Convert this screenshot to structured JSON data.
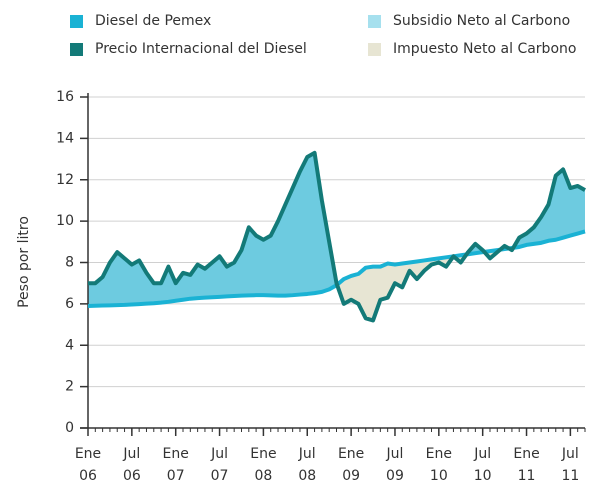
{
  "chart_data": {
    "type": "line",
    "y_label": "Peso por litro",
    "x": [
      "2006-01",
      "2006-02",
      "2006-03",
      "2006-04",
      "2006-05",
      "2006-06",
      "2006-07",
      "2006-08",
      "2006-09",
      "2006-10",
      "2006-11",
      "2006-12",
      "2007-01",
      "2007-02",
      "2007-03",
      "2007-04",
      "2007-05",
      "2007-06",
      "2007-07",
      "2007-08",
      "2007-09",
      "2007-10",
      "2007-11",
      "2007-12",
      "2008-01",
      "2008-02",
      "2008-03",
      "2008-04",
      "2008-05",
      "2008-06",
      "2008-07",
      "2008-08",
      "2008-09",
      "2008-10",
      "2008-11",
      "2008-12",
      "2009-01",
      "2009-02",
      "2009-03",
      "2009-04",
      "2009-05",
      "2009-06",
      "2009-07",
      "2009-08",
      "2009-09",
      "2009-10",
      "2009-11",
      "2009-12",
      "2010-01",
      "2010-02",
      "2010-03",
      "2010-04",
      "2010-05",
      "2010-06",
      "2010-07",
      "2010-08",
      "2010-09",
      "2010-10",
      "2010-11",
      "2010-12",
      "2011-01",
      "2011-02",
      "2011-03",
      "2011-04",
      "2011-05",
      "2011-06",
      "2011-07",
      "2011-08",
      "2011-09"
    ],
    "series": [
      {
        "name": "Diesel de Pemex",
        "color": "#1ab2d4",
        "values": [
          5.9,
          5.91,
          5.92,
          5.93,
          5.94,
          5.95,
          5.97,
          5.99,
          6.01,
          6.03,
          6.06,
          6.1,
          6.15,
          6.2,
          6.25,
          6.28,
          6.3,
          6.32,
          6.34,
          6.36,
          6.38,
          6.4,
          6.41,
          6.42,
          6.42,
          6.41,
          6.4,
          6.4,
          6.42,
          6.45,
          6.48,
          6.52,
          6.58,
          6.7,
          6.9,
          7.2,
          7.35,
          7.45,
          7.75,
          7.8,
          7.8,
          7.95,
          7.9,
          7.95,
          8.0,
          8.05,
          8.1,
          8.15,
          8.2,
          8.25,
          8.3,
          8.35,
          8.4,
          8.45,
          8.5,
          8.55,
          8.6,
          8.65,
          8.7,
          8.75,
          8.85,
          8.9,
          8.95,
          9.05,
          9.1,
          9.2,
          9.3,
          9.4,
          9.5
        ]
      },
      {
        "name": "Precio Internacional del Diesel",
        "color": "#137a78",
        "values": [
          7.0,
          7.0,
          7.3,
          8.0,
          8.5,
          8.2,
          7.9,
          8.1,
          7.5,
          7.0,
          7.0,
          7.8,
          7.0,
          7.5,
          7.4,
          7.9,
          7.7,
          8.0,
          8.3,
          7.8,
          8.0,
          8.6,
          9.7,
          9.3,
          9.1,
          9.3,
          10.0,
          10.8,
          11.6,
          12.4,
          13.1,
          13.3,
          11.0,
          9.0,
          7.0,
          6.0,
          6.2,
          6.0,
          5.3,
          5.2,
          6.2,
          6.3,
          7.0,
          6.8,
          7.6,
          7.2,
          7.6,
          7.9,
          8.0,
          7.8,
          8.3,
          8.0,
          8.5,
          8.9,
          8.6,
          8.2,
          8.5,
          8.8,
          8.6,
          9.2,
          9.4,
          9.7,
          10.2,
          10.8,
          12.2,
          12.5,
          11.6,
          11.7,
          11.5
        ]
      }
    ],
    "areas": [
      {
        "name": "Subsidio Neto al Carbono",
        "color": "#6dcbe0",
        "legend_color": "#a6e0ee"
      },
      {
        "name": "Impuesto Neto al Carbono",
        "color": "#e7e5d3",
        "legend_color": "#e7e5d3"
      }
    ],
    "ylim": [
      0,
      16
    ],
    "yticks": [
      0,
      2,
      4,
      6,
      8,
      10,
      12,
      14,
      16
    ],
    "xticks": [
      {
        "value": "2006-01",
        "label": [
          "Ene",
          "06"
        ]
      },
      {
        "value": "2006-07",
        "label": [
          "Jul",
          "06"
        ]
      },
      {
        "value": "2007-01",
        "label": [
          "Ene",
          "07"
        ]
      },
      {
        "value": "2007-07",
        "label": [
          "Jul",
          "07"
        ]
      },
      {
        "value": "2008-01",
        "label": [
          "Ene",
          "08"
        ]
      },
      {
        "value": "2008-07",
        "label": [
          "Jul",
          "08"
        ]
      },
      {
        "value": "2009-01",
        "label": [
          "Ene",
          "09"
        ]
      },
      {
        "value": "2009-07",
        "label": [
          "Jul",
          "09"
        ]
      },
      {
        "value": "2010-01",
        "label": [
          "Ene",
          "10"
        ]
      },
      {
        "value": "2010-07",
        "label": [
          "Jul",
          "10"
        ]
      },
      {
        "value": "2011-01",
        "label": [
          "Ene",
          "11"
        ]
      },
      {
        "value": "2011-07",
        "label": [
          "Jul",
          "11"
        ]
      }
    ],
    "grid": true
  }
}
